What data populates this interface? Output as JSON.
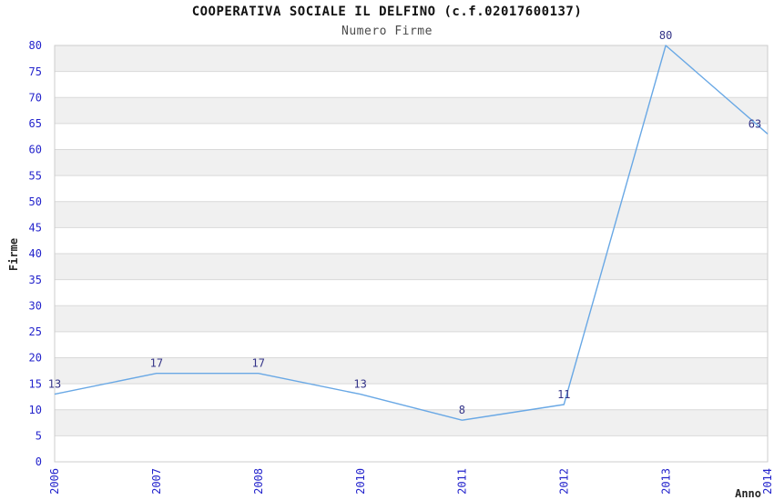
{
  "header": {
    "title": "COOPERATIVA SOCIALE IL DELFINO (c.f.02017600137)",
    "subtitle": "Numero Firme"
  },
  "chart_data": {
    "type": "line",
    "title": "COOPERATIVA SOCIALE IL DELFINO (c.f.02017600137)",
    "subtitle": "Numero Firme",
    "xlabel": "Anno",
    "ylabel": "Firme",
    "categories": [
      "2006",
      "2007",
      "2008",
      "2010",
      "2011",
      "2012",
      "2013",
      "2014"
    ],
    "values": [
      13,
      17,
      17,
      13,
      8,
      11,
      80,
      63
    ],
    "point_labels": [
      "13",
      "17",
      "17",
      "13",
      "8",
      "11",
      "80",
      "63"
    ],
    "ylim": [
      0,
      80
    ],
    "ytick_step": 5,
    "ytick_labels": [
      "0",
      "5",
      "10",
      "15",
      "20",
      "25",
      "30",
      "35",
      "40",
      "45",
      "50",
      "55",
      "60",
      "65",
      "70",
      "75",
      "80"
    ],
    "grid": true,
    "legend": "none",
    "colors": {
      "series_line": "#69a8e5",
      "tick_label": "#2424cc",
      "point_label": "#333388",
      "band_alt": "#f0f0f0",
      "band_base": "#ffffff",
      "grid_line": "#d9d9d9",
      "plot_border": "#cccccc",
      "title": "#111111",
      "subtitle": "#4a4a4a",
      "axis_title": "#262626"
    }
  }
}
